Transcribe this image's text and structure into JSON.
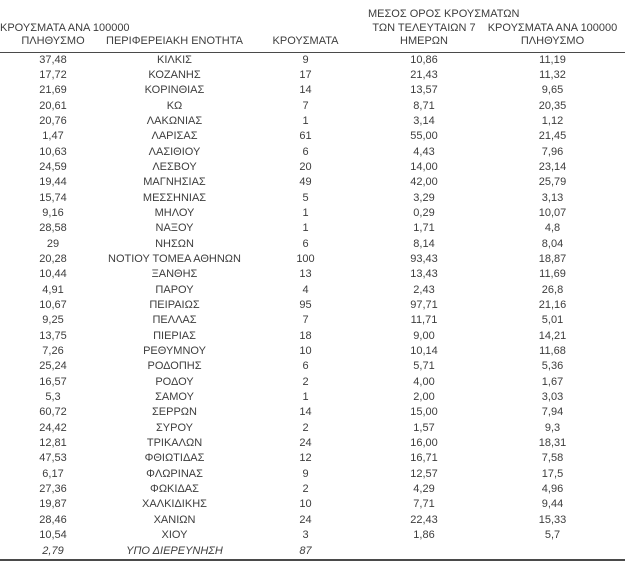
{
  "styles": {
    "text_color": "#3d3d3d",
    "rule_color": "#4a4a4a",
    "background": "#ffffff"
  },
  "chart_data": {
    "type": "table",
    "columns": [
      {
        "name": "cases-per-100000-population",
        "lines": [
          "ΚΡΟΥΣΜΑΤΑ ΑΝΑ 100000",
          "ΠΛΗΘΥΣΜΟ"
        ]
      },
      {
        "name": "regional-unit",
        "lines": [
          "ΠΕΡΙΦΕΡΕΙΑΚΗ ΕΝΟΤΗΤΑ"
        ]
      },
      {
        "name": "cases",
        "lines": [
          "ΚΡΟΥΣΜΑΤΑ"
        ]
      },
      {
        "name": "avg-cases-last-7-days",
        "lines": [
          "ΜΕΣΟΣ ΟΡΟΣ ΚΡΟΥΣΜΑΤΩΝ",
          "ΤΩΝ ΤΕΛΕΥΤΑΙΩΝ 7",
          "ΗΜΕΡΩΝ"
        ]
      },
      {
        "name": "cases-per-100000-population-7d",
        "lines": [
          "ΚΡΟΥΣΜΑΤΑ ΑΝΑ 100000",
          "ΠΛΗΘΥΣΜΟ"
        ]
      }
    ],
    "rows": [
      {
        "cells": [
          "37,48",
          "ΚΙΛΚΙΣ",
          "9",
          "10,86",
          "11,19"
        ],
        "italic": false
      },
      {
        "cells": [
          "17,72",
          "ΚΟΖΑΝΗΣ",
          "17",
          "21,43",
          "11,32"
        ],
        "italic": false
      },
      {
        "cells": [
          "21,69",
          "ΚΟΡΙΝΘΙΑΣ",
          "14",
          "13,57",
          "9,65"
        ],
        "italic": false
      },
      {
        "cells": [
          "20,61",
          "ΚΩ",
          "7",
          "8,71",
          "20,35"
        ],
        "italic": false
      },
      {
        "cells": [
          "20,76",
          "ΛΑΚΩΝΙΑΣ",
          "1",
          "3,14",
          "1,12"
        ],
        "italic": false
      },
      {
        "cells": [
          "1,47",
          "ΛΑΡΙΣΑΣ",
          "61",
          "55,00",
          "21,45"
        ],
        "italic": false
      },
      {
        "cells": [
          "10,63",
          "ΛΑΣΙΘΙΟΥ",
          "6",
          "4,43",
          "7,96"
        ],
        "italic": false
      },
      {
        "cells": [
          "24,59",
          "ΛΕΣΒΟΥ",
          "20",
          "14,00",
          "23,14"
        ],
        "italic": false
      },
      {
        "cells": [
          "19,44",
          "ΜΑΓΝΗΣΙΑΣ",
          "49",
          "42,00",
          "25,79"
        ],
        "italic": false
      },
      {
        "cells": [
          "15,74",
          "ΜΕΣΣΗΝΙΑΣ",
          "5",
          "3,29",
          "3,13"
        ],
        "italic": false
      },
      {
        "cells": [
          "9,16",
          "ΜΗΛΟΥ",
          "1",
          "0,29",
          "10,07"
        ],
        "italic": false
      },
      {
        "cells": [
          "28,58",
          "ΝΑΞΟΥ",
          "1",
          "1,71",
          "4,8"
        ],
        "italic": false
      },
      {
        "cells": [
          "29",
          "ΝΗΣΩΝ",
          "6",
          "8,14",
          "8,04"
        ],
        "italic": false
      },
      {
        "cells": [
          "20,28",
          "ΝΟΤΙΟΥ ΤΟΜΕΑ ΑΘΗΝΩΝ",
          "100",
          "93,43",
          "18,87"
        ],
        "italic": false
      },
      {
        "cells": [
          "10,44",
          "ΞΑΝΘΗΣ",
          "13",
          "13,43",
          "11,69"
        ],
        "italic": false
      },
      {
        "cells": [
          "4,91",
          "ΠΑΡΟΥ",
          "4",
          "2,43",
          "26,8"
        ],
        "italic": false
      },
      {
        "cells": [
          "10,67",
          "ΠΕΙΡΑΙΩΣ",
          "95",
          "97,71",
          "21,16"
        ],
        "italic": false
      },
      {
        "cells": [
          "9,25",
          "ΠΕΛΛΑΣ",
          "7",
          "11,71",
          "5,01"
        ],
        "italic": false
      },
      {
        "cells": [
          "13,75",
          "ΠΙΕΡΙΑΣ",
          "18",
          "9,00",
          "14,21"
        ],
        "italic": false
      },
      {
        "cells": [
          "7,26",
          "ΡΕΘΥΜΝΟΥ",
          "10",
          "10,14",
          "11,68"
        ],
        "italic": false
      },
      {
        "cells": [
          "25,24",
          "ΡΟΔΟΠΗΣ",
          "6",
          "5,71",
          "5,36"
        ],
        "italic": false
      },
      {
        "cells": [
          "16,57",
          "ΡΟΔΟΥ",
          "2",
          "4,00",
          "1,67"
        ],
        "italic": false
      },
      {
        "cells": [
          "5,3",
          "ΣΑΜΟΥ",
          "1",
          "2,00",
          "3,03"
        ],
        "italic": false
      },
      {
        "cells": [
          "60,72",
          "ΣΕΡΡΩΝ",
          "14",
          "15,00",
          "7,94"
        ],
        "italic": false
      },
      {
        "cells": [
          "24,42",
          "ΣΥΡΟΥ",
          "2",
          "1,57",
          "9,3"
        ],
        "italic": false
      },
      {
        "cells": [
          "12,81",
          "ΤΡΙΚΑΛΩΝ",
          "24",
          "16,00",
          "18,31"
        ],
        "italic": false
      },
      {
        "cells": [
          "47,53",
          "ΦΘΙΩΤΙΔΑΣ",
          "12",
          "16,71",
          "7,58"
        ],
        "italic": false
      },
      {
        "cells": [
          "6,17",
          "ΦΛΩΡΙΝΑΣ",
          "9",
          "12,57",
          "17,5"
        ],
        "italic": false
      },
      {
        "cells": [
          "27,36",
          "ΦΩΚΙΔΑΣ",
          "2",
          "4,29",
          "4,96"
        ],
        "italic": false
      },
      {
        "cells": [
          "19,87",
          "ΧΑΛΚΙΔΙΚΗΣ",
          "10",
          "7,71",
          "9,44"
        ],
        "italic": false
      },
      {
        "cells": [
          "28,46",
          "ΧΑΝΙΩΝ",
          "24",
          "22,43",
          "15,33"
        ],
        "italic": false
      },
      {
        "cells": [
          "10,54",
          "ΧΙΟΥ",
          "3",
          "1,86",
          "5,7"
        ],
        "italic": false
      },
      {
        "cells": [
          "2,79",
          "ΥΠΟ ΔΙΕΡΕΥΝΗΣΗ",
          "87",
          "",
          ""
        ],
        "italic": true
      }
    ]
  }
}
